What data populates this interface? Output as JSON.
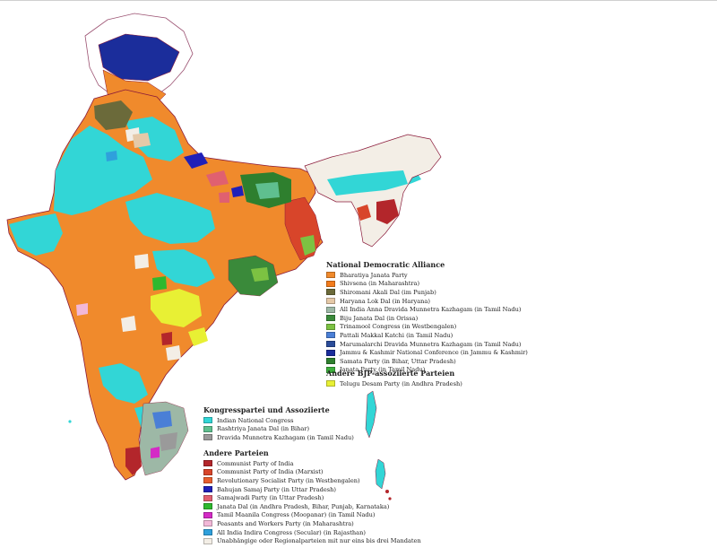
{
  "colors": {
    "bjp": "#F08A2C",
    "shivsena": "#F27B1B",
    "akali": "#6B6A3A",
    "inld": "#E5C9A8",
    "aiadmk": "#9DB8A6",
    "bjd": "#3A8A3A",
    "tmc": "#7CC242",
    "pmk": "#4A7FD6",
    "mdmk": "#2A4C9A",
    "jknc": "#1B2D9B",
    "samata": "#2E7F2E",
    "janata": "#3DAF3D",
    "tdp": "#E8F034",
    "inc": "#32D6D6",
    "rjd": "#5FBF8F",
    "dmk": "#9A9A9A",
    "cpi": "#B3262B",
    "cpim": "#D8452A",
    "rsp": "#E85E2E",
    "bsp": "#2020B8",
    "sp": "#E06070",
    "jd": "#2EB82E",
    "tmcm": "#D42AC6",
    "pwp": "#F2B8D8",
    "aicss": "#2FA0DC",
    "independent": "#F3EEE6",
    "boundary": "#8A1A3A",
    "sea": "#FFFFFF"
  },
  "legend": {
    "nda": {
      "title": "National Democratic Alliance",
      "items": [
        {
          "label": "Bharatiya Janata Party",
          "color": "#F08A2C"
        },
        {
          "label": "Shivsena (in Maharashtra)",
          "color": "#F27B1B"
        },
        {
          "label": "Shiromani Akali Dal (im Punjab)",
          "color": "#6B6A3A"
        },
        {
          "label": "Haryana Lok Dal (in Haryana)",
          "color": "#E5C9A8"
        },
        {
          "label": "All India Anna Dravida Munnetra Kazhagam (in Tamil Nadu)",
          "color": "#9DB8A6"
        },
        {
          "label": "Biju Janata Dal (in Orissa)",
          "color": "#3A8A3A"
        },
        {
          "label": "Trinamool Congress (in Westbengalen)",
          "color": "#7CC242"
        },
        {
          "label": "Pattali Makkal Katchi (in Tamil Nadu)",
          "color": "#4A7FD6"
        },
        {
          "label": "Marumalarchi Dravida Munnetra Kazhagam (in Tamil Nadu)",
          "color": "#2A4C9A"
        },
        {
          "label": "Jammu & Kashmir National Conference (in Jammu & Kashmir)",
          "color": "#1B2D9B"
        },
        {
          "label": "Samata Party (in Bihar, Uttar Pradesh)",
          "color": "#2E7F2E"
        },
        {
          "label": "Janata Party (in Tamil Nadu)",
          "color": "#3DAF3D"
        }
      ]
    },
    "bjp_assoc": {
      "title": "Andere BJP-assoziierte Parteien",
      "items": [
        {
          "label": "Telugu Desam Party (in Andhra Pradesh)",
          "color": "#E8F034"
        }
      ]
    },
    "congress": {
      "title": "Kongresspartei und Assoziierte",
      "items": [
        {
          "label": "Indian National Congress",
          "color": "#32D6D6"
        },
        {
          "label": "Rashtriya Janata Dal (in Bihar)",
          "color": "#5FBF8F"
        },
        {
          "label": "Dravida Munnetra Kazhagam (in Tamil Nadu)",
          "color": "#9A9A9A"
        }
      ]
    },
    "others": {
      "title": "Andere Parteien",
      "items": [
        {
          "label": "Communist Party of India",
          "color": "#B3262B"
        },
        {
          "label": "Communist Party of India (Marxist)",
          "color": "#D8452A"
        },
        {
          "label": "Revolutionary Socialist Party (in Westbengalen)",
          "color": "#E85E2E"
        },
        {
          "label": "Bahujan Samaj Party (in Uttar Pradesh)",
          "color": "#2020B8"
        },
        {
          "label": "Samajwadi Party (in Uttar Pradesh)",
          "color": "#E06070"
        },
        {
          "label": "Janata Dal (in Andhra Pradesh, Bihar, Punjab, Karnataka)",
          "color": "#2EB82E"
        },
        {
          "label": "Tamil Maanila Congress (Moopanar) (in Tamil Nadu)",
          "color": "#D42AC6"
        },
        {
          "label": "Peasants and Workers Party (in Maharashtra)",
          "color": "#F2B8D8"
        },
        {
          "label": "All India Indira Congress (Secular) (in Rajasthan)",
          "color": "#2FA0DC"
        },
        {
          "label": "Unabhängige oder Regionalparteien mit nur eins bis drei Mandaten",
          "color": "#F3EEE6"
        }
      ]
    }
  }
}
